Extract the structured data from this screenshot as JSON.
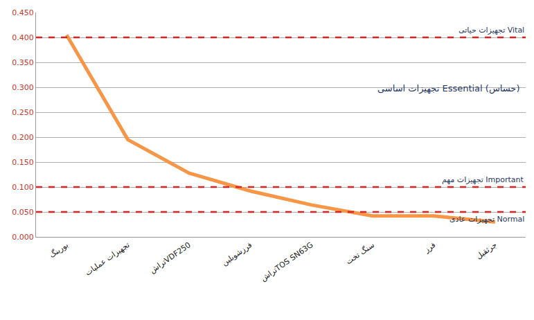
{
  "chart_data": {
    "type": "line",
    "categories": [
      "بورینگ",
      "تجهیزات عملیات",
      "تراشVDF250",
      "فرزشوبلین",
      "تراشTOS SN63G",
      "سنگ تخت",
      "فرز",
      "جرثقیل"
    ],
    "values": [
      0.405,
      0.195,
      0.128,
      0.092,
      0.064,
      0.042,
      0.042,
      0.03
    ],
    "color": "#f79646",
    "ylim": [
      0,
      0.45
    ],
    "yticks": [
      {
        "value": 0,
        "label": "0.000"
      },
      {
        "value": 0.05,
        "label": "0.050"
      },
      {
        "value": 0.1,
        "label": "0.100"
      },
      {
        "value": 0.15,
        "label": "0.150"
      },
      {
        "value": 0.2,
        "label": "0.200"
      },
      {
        "value": 0.25,
        "label": "0.250"
      },
      {
        "value": 0.3,
        "label": "0.300"
      },
      {
        "value": 0.35,
        "label": "0.350"
      },
      {
        "value": 0.4,
        "label": "0.400"
      },
      {
        "value": 0.45,
        "label": "0.450"
      }
    ],
    "grid": true,
    "reference_lines": [
      {
        "value": 0.4,
        "label": "تجهیزات حیاتی Vital",
        "color": "#e02020",
        "line_style": "dash"
      },
      {
        "value": 0.1,
        "label": "تجهیزات مهم Important",
        "color": "#e02020",
        "line_style": "dash"
      },
      {
        "value": 0.05,
        "label": "تجهیزات عادی Normal",
        "color": "#e02020",
        "line_style": "dash"
      }
    ],
    "annotations": [
      "تجهیزات اساسی Essential (حساس)"
    ]
  }
}
